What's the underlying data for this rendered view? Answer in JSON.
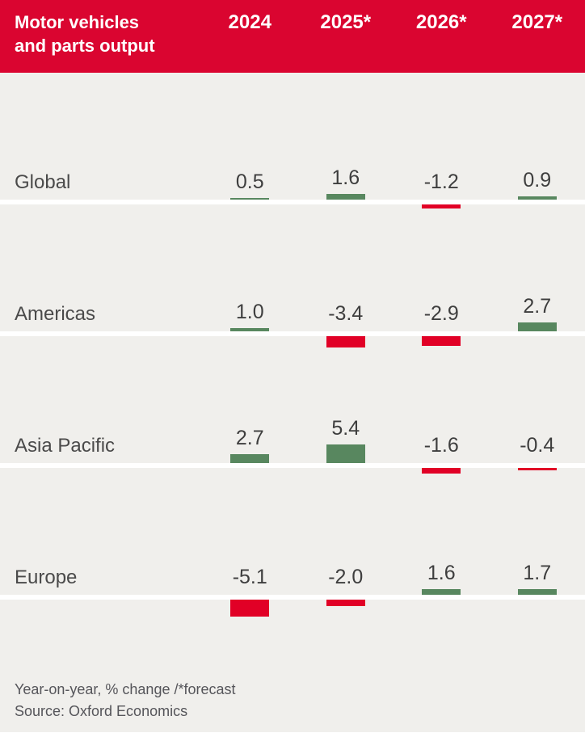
{
  "header": {
    "title_line1": "Motor vehicles",
    "title_line2": "and parts output"
  },
  "chart_data": {
    "type": "bar",
    "title": "Motor vehicles and parts output",
    "subtitle": "Year-on-year, % change /*forecast",
    "categories": [
      "2024",
      "2025*",
      "2026*",
      "2027*"
    ],
    "series": [
      {
        "name": "Global",
        "values": [
          0.5,
          1.6,
          -1.2,
          0.9
        ]
      },
      {
        "name": "Americas",
        "values": [
          1.0,
          -3.4,
          -2.9,
          2.7
        ]
      },
      {
        "name": "Asia Pacific",
        "values": [
          2.7,
          5.4,
          -1.6,
          -0.4
        ]
      },
      {
        "name": "Europe",
        "values": [
          -5.1,
          -2.0,
          1.6,
          1.7
        ]
      }
    ],
    "value_precision": 1,
    "positive_color": "#58875f",
    "negative_color": "#e10026",
    "header_color": "#da0530",
    "background_color": "#f0efec",
    "legend": "none",
    "grid": "zero-baseline-only"
  },
  "footer": {
    "note": "Year-on-year, % change /*forecast",
    "source": "Source: Oxford Economics"
  }
}
